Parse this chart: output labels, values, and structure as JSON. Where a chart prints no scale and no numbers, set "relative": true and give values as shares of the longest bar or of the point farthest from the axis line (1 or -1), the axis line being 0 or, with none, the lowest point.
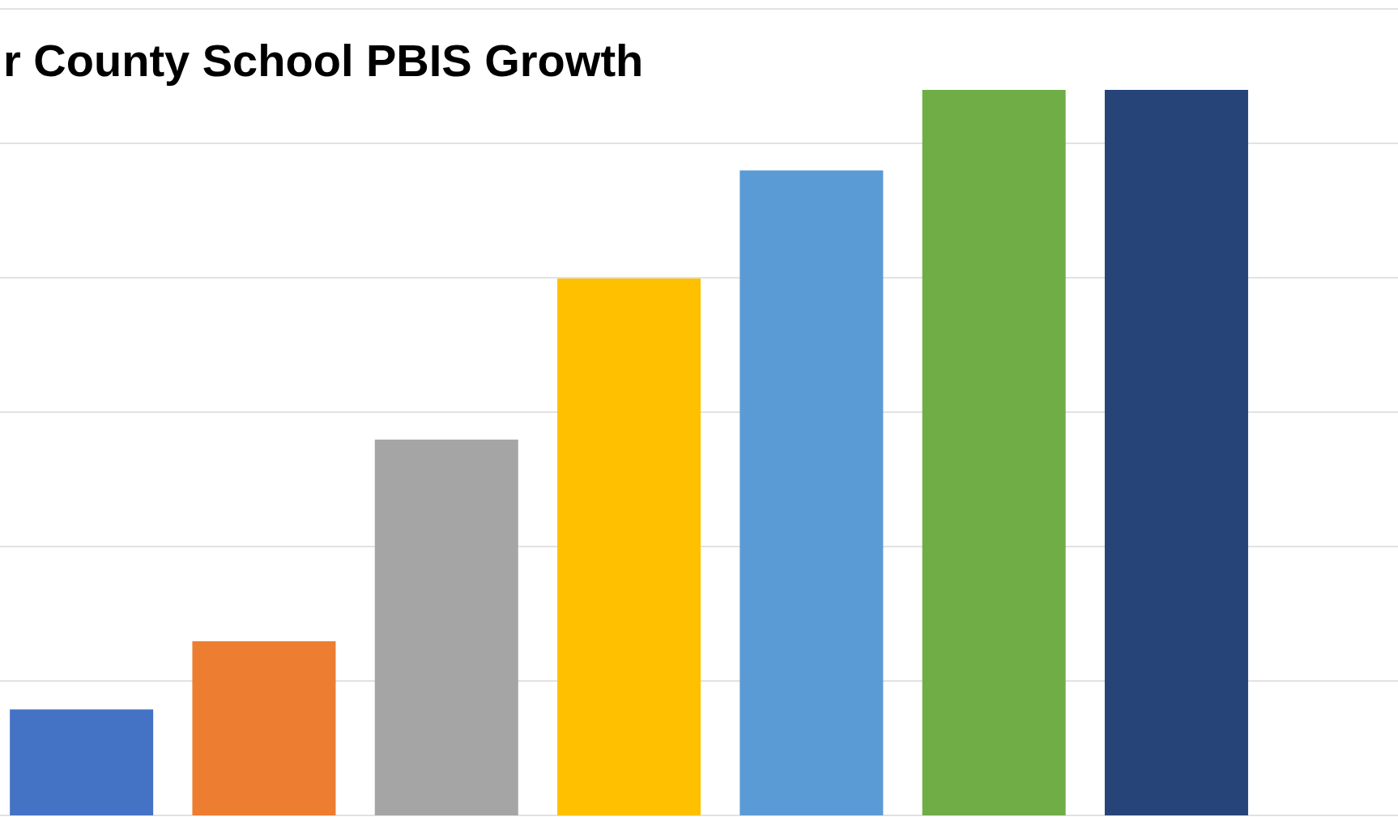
{
  "chart_data": {
    "type": "bar",
    "title": "r County School PBIS Growth",
    "relative": true,
    "grid": "y",
    "categories": [
      null,
      null,
      null,
      null,
      null,
      null,
      null
    ],
    "values": [
      0.146,
      0.24,
      0.518,
      0.74,
      0.889,
      1,
      1
    ],
    "colors": [
      "#4472c4",
      "#ed7d31",
      "#a5a5a5",
      "#ffc000",
      "#5b9bd5",
      "#70ad47",
      "#264478"
    ]
  }
}
